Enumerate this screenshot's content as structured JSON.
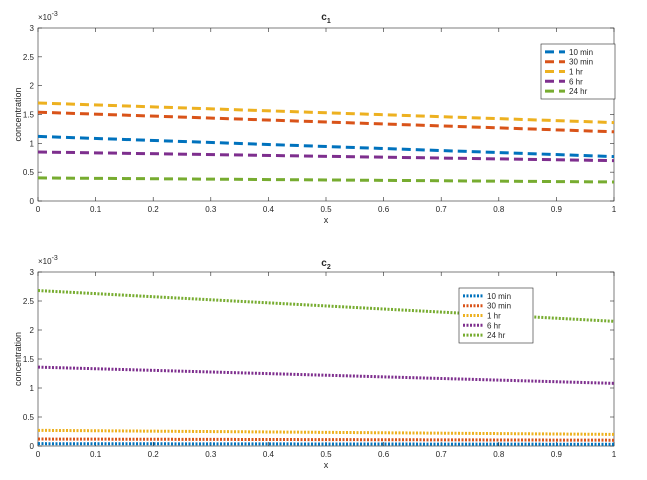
{
  "chart_data": [
    {
      "type": "line",
      "title": "c",
      "title_subscript": "1",
      "xlabel": "x",
      "ylabel": "concentration",
      "y_exponent_base": "×10",
      "y_exponent_power": "-3",
      "xlim": [
        0,
        1
      ],
      "ylim": [
        0,
        3
      ],
      "xticks": [
        0,
        0.1,
        0.2,
        0.3,
        0.4,
        0.5,
        0.6,
        0.7,
        0.8,
        0.9,
        1
      ],
      "xtick_labels": [
        "0",
        "0.1",
        "0.2",
        "0.3",
        "0.4",
        "0.5",
        "0.6",
        "0.7",
        "0.8",
        "0.9",
        "1"
      ],
      "yticks": [
        0,
        0.5,
        1,
        1.5,
        2,
        2.5,
        3
      ],
      "ytick_labels": [
        "0",
        "0.5",
        "1",
        "1.5",
        "2",
        "2.5",
        "3"
      ],
      "line_style": "dashed",
      "legend_position": "top-right",
      "grid": false,
      "series": [
        {
          "name": "10 min",
          "color": "#0072BD",
          "x": [
            0,
            1
          ],
          "y": [
            1.12,
            0.77
          ]
        },
        {
          "name": "30 min",
          "color": "#D95319",
          "x": [
            0,
            1
          ],
          "y": [
            1.54,
            1.2
          ]
        },
        {
          "name": "1 hr",
          "color": "#EDB120",
          "x": [
            0,
            1
          ],
          "y": [
            1.7,
            1.36
          ]
        },
        {
          "name": "6 hr",
          "color": "#7E2F8E",
          "x": [
            0,
            1
          ],
          "y": [
            0.85,
            0.7
          ]
        },
        {
          "name": "24 hr",
          "color": "#77AC30",
          "x": [
            0,
            1
          ],
          "y": [
            0.4,
            0.33
          ]
        }
      ]
    },
    {
      "type": "line",
      "title": "c",
      "title_subscript": "2",
      "xlabel": "x",
      "ylabel": "concentration",
      "y_exponent_base": "×10",
      "y_exponent_power": "-3",
      "xlim": [
        0,
        1
      ],
      "ylim": [
        0,
        3
      ],
      "xticks": [
        0,
        0.1,
        0.2,
        0.3,
        0.4,
        0.5,
        0.6,
        0.7,
        0.8,
        0.9,
        1
      ],
      "xtick_labels": [
        "0",
        "0.1",
        "0.2",
        "0.3",
        "0.4",
        "0.5",
        "0.6",
        "0.7",
        "0.8",
        "0.9",
        "1"
      ],
      "yticks": [
        0,
        0.5,
        1,
        1.5,
        2,
        2.5,
        3
      ],
      "ytick_labels": [
        "0",
        "0.5",
        "1",
        "1.5",
        "2",
        "2.5",
        "3"
      ],
      "line_style": "dotted",
      "legend_position": "top-right",
      "grid": false,
      "series": [
        {
          "name": "10 min",
          "color": "#0072BD",
          "x": [
            0,
            1
          ],
          "y": [
            0.04,
            0.03
          ]
        },
        {
          "name": "30 min",
          "color": "#D95319",
          "x": [
            0,
            1
          ],
          "y": [
            0.12,
            0.1
          ]
        },
        {
          "name": "1 hr",
          "color": "#EDB120",
          "x": [
            0,
            1
          ],
          "y": [
            0.27,
            0.2
          ]
        },
        {
          "name": "6 hr",
          "color": "#7E2F8E",
          "x": [
            0,
            1
          ],
          "y": [
            1.36,
            1.08
          ]
        },
        {
          "name": "24 hr",
          "color": "#77AC30",
          "x": [
            0,
            1
          ],
          "y": [
            2.68,
            2.15
          ]
        }
      ]
    }
  ]
}
